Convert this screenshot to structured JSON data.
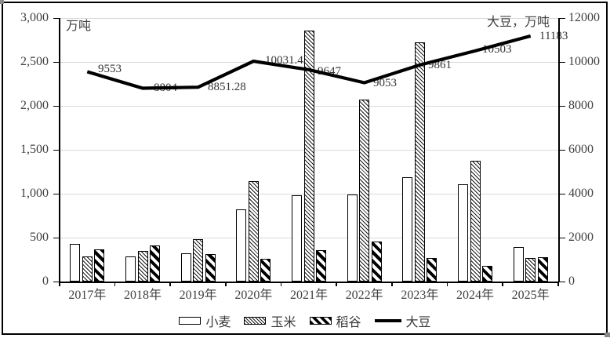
{
  "chart_data": {
    "type": "bar",
    "subtype": "grouped-bars-with-line-combo",
    "categories": [
      "2017年",
      "2018年",
      "2019年",
      "2020年",
      "2021年",
      "2022年",
      "2023年",
      "2024年",
      "2025年"
    ],
    "series": [
      {
        "id": "wheat",
        "name": "小麦",
        "kind": "bar",
        "axis": "left",
        "values": [
          430,
          290,
          320,
          825,
          980,
          995,
          1190,
          1110,
          390
        ]
      },
      {
        "id": "corn",
        "name": "玉米",
        "kind": "bar",
        "axis": "left",
        "values": [
          285,
          350,
          480,
          1140,
          2860,
          2070,
          2720,
          1375,
          270
        ]
      },
      {
        "id": "rice",
        "name": "稻谷",
        "kind": "bar",
        "axis": "left",
        "values": [
          365,
          410,
          315,
          260,
          355,
          455,
          265,
          175,
          275
        ]
      },
      {
        "id": "soybean",
        "name": "大豆",
        "kind": "line",
        "axis": "right",
        "values": [
          9553,
          8804,
          8851.28,
          10031.45,
          9647,
          9053,
          9861,
          10503,
          11183
        ],
        "labels": [
          "9553",
          "8804",
          "8851.28",
          "10031.45",
          "9647",
          "9053",
          "9861",
          "10503",
          "11183"
        ]
      }
    ],
    "left_axis": {
      "title": "万吨",
      "min": 0,
      "max": 3000,
      "ticks": [
        "3,000",
        "2,500",
        "2,000",
        "1,500",
        "1,000",
        "500",
        "0"
      ]
    },
    "right_axis": {
      "title": "大豆，万吨",
      "min": 0,
      "max": 12000,
      "ticks": [
        "12000",
        "10000",
        "8000",
        "6000",
        "4000",
        "2000",
        "0"
      ]
    },
    "legend_position": "bottom",
    "grid": "horizontal-light-gray",
    "colors": {
      "ink": "#000000",
      "gridline": "#d9d9d9",
      "text": "#404040",
      "background": "#ffffff"
    }
  }
}
